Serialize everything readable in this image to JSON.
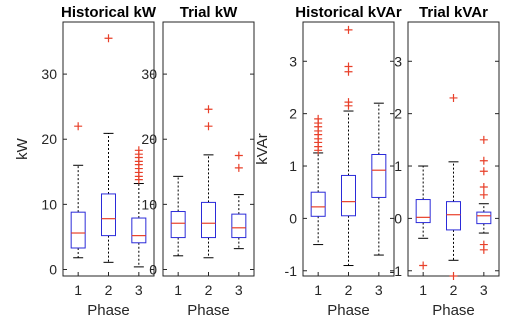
{
  "chart_data": [
    {
      "type": "box",
      "title": "Historical kW",
      "xlabel": "Phase",
      "ylabel": "kW",
      "categories": [
        "1",
        "2",
        "3"
      ],
      "ylim": [
        -1,
        38
      ],
      "yticks": [
        "0",
        "10",
        "20",
        "30"
      ],
      "boxes": [
        {
          "category": "1",
          "whisker_low": 1.8,
          "q1": 3.3,
          "median": 5.6,
          "q3": 8.8,
          "whisker_high": 16.0,
          "outliers": [
            22.0
          ]
        },
        {
          "category": "2",
          "whisker_low": 1.1,
          "q1": 5.2,
          "median": 7.8,
          "q3": 11.6,
          "whisker_high": 20.9,
          "outliers": [
            35.5
          ]
        },
        {
          "category": "3",
          "whisker_low": 0.4,
          "q1": 4.1,
          "median": 5.2,
          "q3": 7.9,
          "whisker_high": 13.2,
          "outliers": [
            13.8,
            14.3,
            14.9,
            15.5,
            16.1,
            16.6,
            17.2,
            17.7,
            18.3
          ]
        }
      ]
    },
    {
      "type": "box",
      "title": "Trial kW",
      "xlabel": "Phase",
      "ylabel": "",
      "categories": [
        "1",
        "2",
        "3"
      ],
      "ylim": [
        -1,
        38
      ],
      "yticks": [
        "0",
        "10",
        "20",
        "30"
      ],
      "boxes": [
        {
          "category": "1",
          "whisker_low": 2.1,
          "q1": 4.9,
          "median": 7.1,
          "q3": 8.9,
          "whisker_high": 14.3,
          "outliers": []
        },
        {
          "category": "2",
          "whisker_low": 1.8,
          "q1": 4.9,
          "median": 7.1,
          "q3": 10.3,
          "whisker_high": 17.6,
          "outliers": [
            22.0,
            24.6
          ]
        },
        {
          "category": "3",
          "whisker_low": 3.2,
          "q1": 4.9,
          "median": 6.4,
          "q3": 8.5,
          "whisker_high": 11.5,
          "outliers": [
            15.6,
            17.5
          ]
        }
      ]
    },
    {
      "type": "box",
      "title": "Historical kVAr",
      "xlabel": "Phase",
      "ylabel": "kVAr",
      "categories": [
        "1",
        "2",
        "3"
      ],
      "ylim": [
        -1.1,
        3.75
      ],
      "yticks": [
        "-1",
        "0",
        "1",
        "2",
        "3"
      ],
      "boxes": [
        {
          "category": "1",
          "whisker_low": -0.5,
          "q1": 0.04,
          "median": 0.22,
          "q3": 0.5,
          "whisker_high": 1.25,
          "outliers": [
            1.3,
            1.37,
            1.45,
            1.52,
            1.6,
            1.67,
            1.75,
            1.82,
            1.9
          ]
        },
        {
          "category": "2",
          "whisker_low": -0.9,
          "q1": 0.05,
          "median": 0.32,
          "q3": 0.82,
          "whisker_high": 2.05,
          "outliers": [
            2.15,
            2.22,
            2.8,
            2.9,
            3.6
          ]
        },
        {
          "category": "3",
          "whisker_low": -0.7,
          "q1": 0.4,
          "median": 0.92,
          "q3": 1.22,
          "whisker_high": 2.2,
          "outliers": []
        }
      ]
    },
    {
      "type": "box",
      "title": "Trial kVAr",
      "xlabel": "Phase",
      "ylabel": "",
      "categories": [
        "1",
        "2",
        "3"
      ],
      "ylim": [
        -1.1,
        3.75
      ],
      "yticks": [
        "-1",
        "0",
        "1",
        "2",
        "3"
      ],
      "boxes": [
        {
          "category": "1",
          "whisker_low": -0.38,
          "q1": -0.08,
          "median": 0.02,
          "q3": 0.36,
          "whisker_high": 1.0,
          "outliers": [
            -0.9
          ]
        },
        {
          "category": "2",
          "whisker_low": -0.8,
          "q1": -0.22,
          "median": 0.07,
          "q3": 0.32,
          "whisker_high": 1.08,
          "outliers": [
            -1.1,
            2.3
          ]
        },
        {
          "category": "3",
          "whisker_low": -0.28,
          "q1": -0.1,
          "median": 0.05,
          "q3": 0.12,
          "whisker_high": 0.28,
          "outliers": [
            -0.5,
            -0.6,
            0.45,
            0.6,
            0.9,
            1.1,
            1.5
          ]
        }
      ]
    }
  ]
}
